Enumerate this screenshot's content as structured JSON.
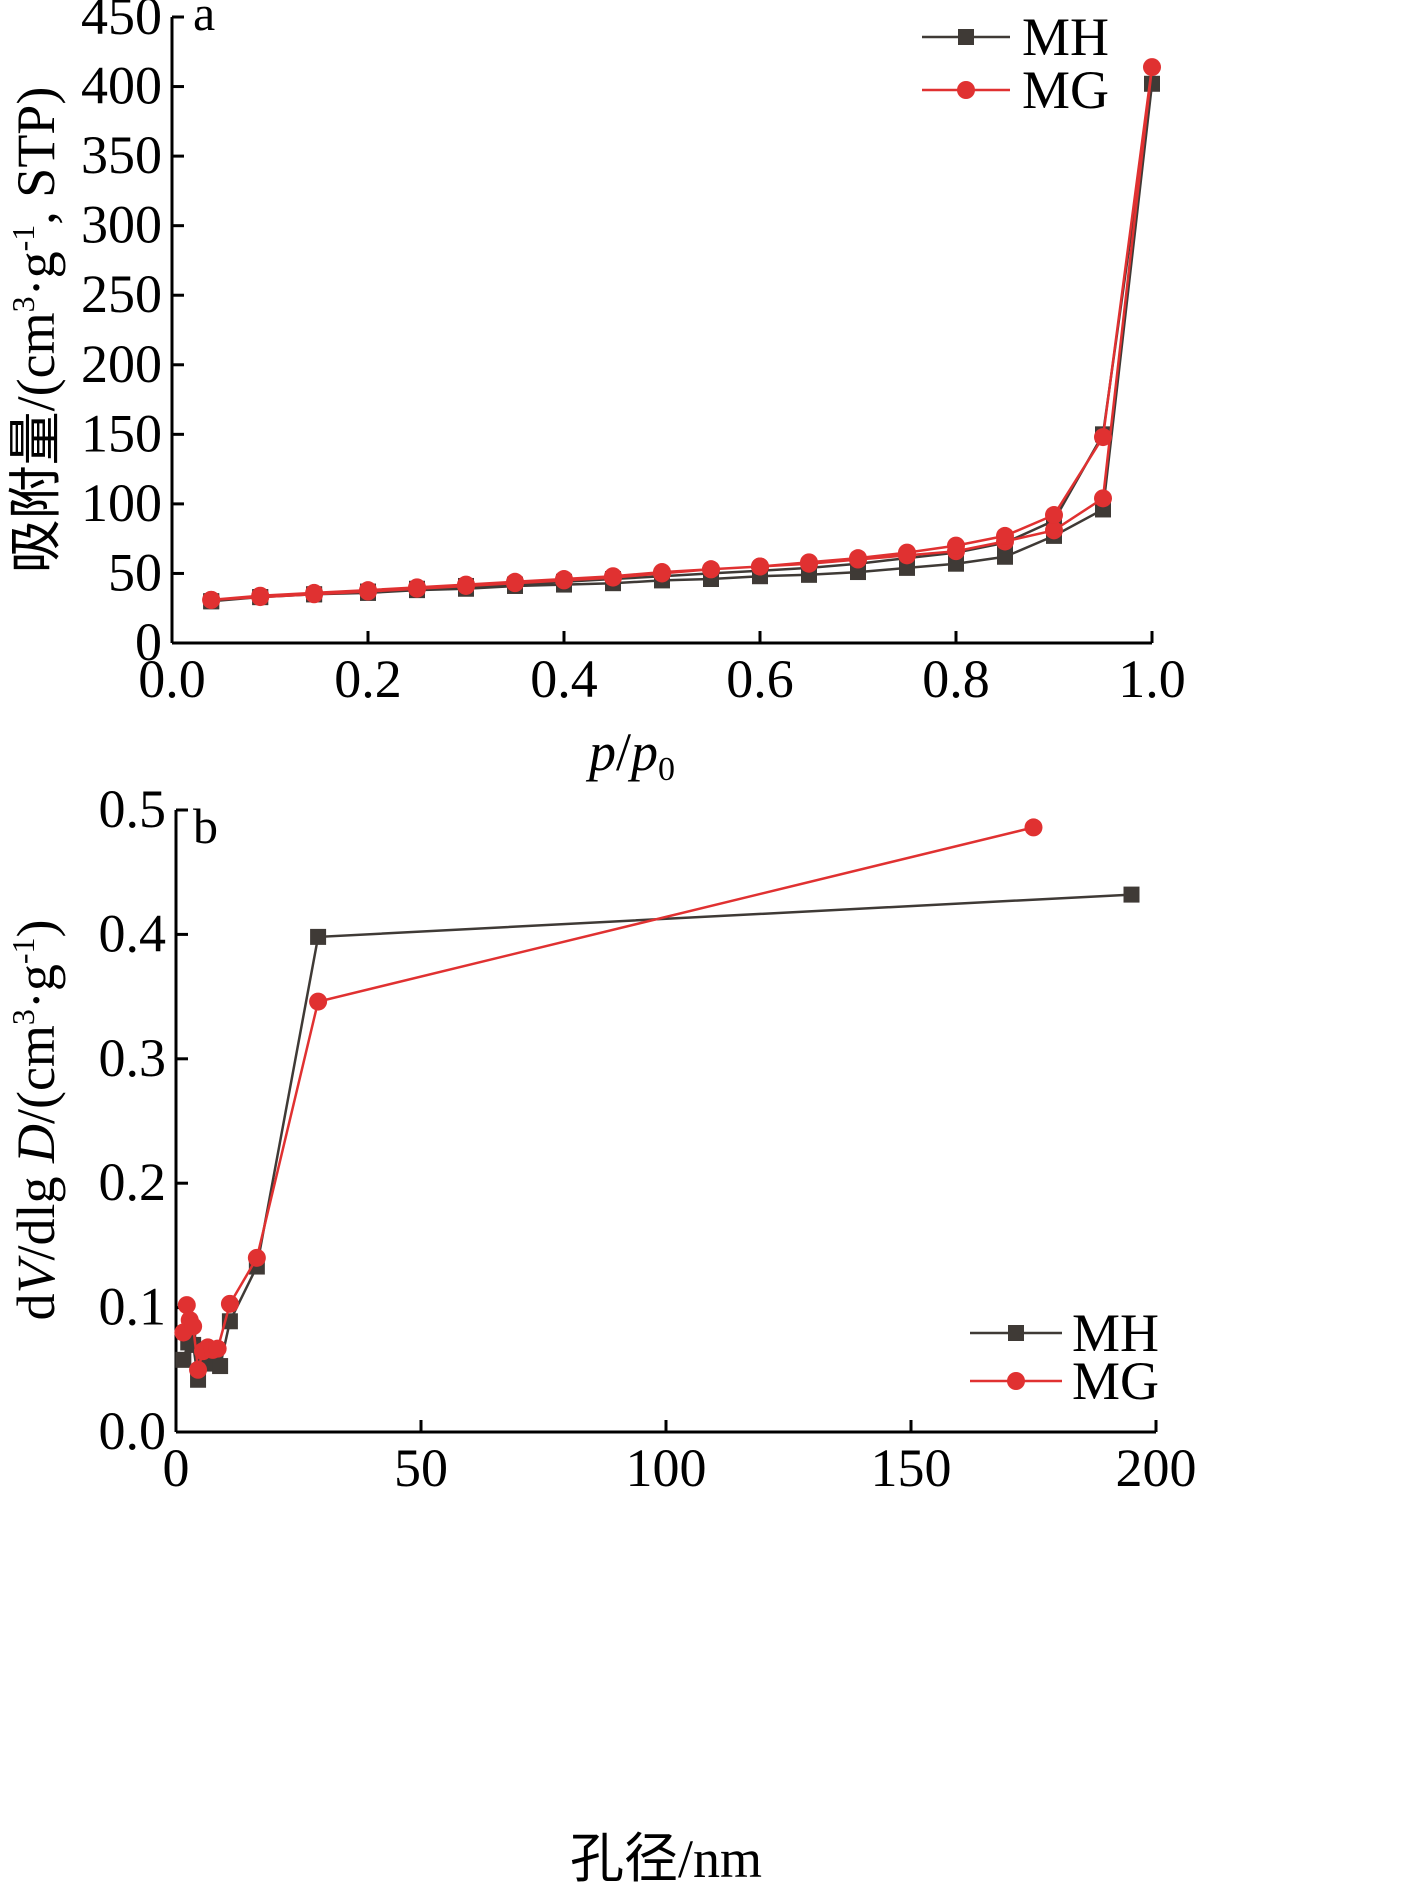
{
  "chart_data": [
    {
      "type": "line",
      "panel_label": "a",
      "xlabel": "p/p0",
      "xlabel_parts": [
        "p",
        "/",
        "p",
        "0"
      ],
      "ylabel": "吸附量/(cm³·g⁻¹, STP)",
      "ylabel_parts": [
        "吸附量/(cm",
        "3",
        "·g",
        "-1",
        ", STP)"
      ],
      "xlim": [
        0,
        1.0
      ],
      "ylim": [
        0,
        450
      ],
      "xticks": [
        "0.0",
        "0.2",
        "0.4",
        "0.6",
        "0.8",
        "1.0"
      ],
      "yticks": [
        "0",
        "50",
        "100",
        "150",
        "200",
        "250",
        "300",
        "350",
        "400",
        "450"
      ],
      "legend_position": "top-right",
      "series": [
        {
          "name": "MH",
          "color": "#3f3a36",
          "marker": "square",
          "x": [
            0.04,
            0.09,
            0.145,
            0.2,
            0.25,
            0.3,
            0.35,
            0.4,
            0.45,
            0.5,
            0.55,
            0.6,
            0.65,
            0.7,
            0.75,
            0.8,
            0.85,
            0.9,
            0.95,
            1.0,
            0.95,
            0.9,
            0.85,
            0.8,
            0.75,
            0.7,
            0.65,
            0.6,
            0.55,
            0.5,
            0.45,
            0.4,
            0.35,
            0.3,
            0.25,
            0.2,
            0.145,
            0.09,
            0.04
          ],
          "y": [
            30,
            33,
            35,
            36,
            38,
            39,
            41,
            42,
            43,
            45,
            46,
            48,
            49,
            51,
            54,
            57,
            62,
            77,
            96,
            402,
            150,
            88,
            72,
            65,
            61,
            57,
            54,
            52,
            50,
            48,
            46,
            44,
            42,
            41,
            39,
            37,
            35,
            33,
            30
          ]
        },
        {
          "name": "MG",
          "color": "#e03131",
          "marker": "circle",
          "x": [
            0.04,
            0.09,
            0.145,
            0.2,
            0.25,
            0.3,
            0.35,
            0.4,
            0.45,
            0.5,
            0.55,
            0.6,
            0.65,
            0.7,
            0.75,
            0.8,
            0.85,
            0.9,
            0.95,
            1.0,
            0.95,
            0.9,
            0.85,
            0.8,
            0.75,
            0.7,
            0.65,
            0.6,
            0.55,
            0.5,
            0.45,
            0.4,
            0.35,
            0.3,
            0.25,
            0.2,
            0.145,
            0.09,
            0.04
          ],
          "y": [
            31,
            34,
            36,
            38,
            40,
            42,
            44,
            46,
            48,
            51,
            53,
            55,
            57,
            60,
            63,
            66,
            73,
            81,
            104,
            414,
            148,
            92,
            77,
            70,
            65,
            61,
            58,
            55,
            53,
            50,
            47,
            45,
            43,
            41,
            39,
            37,
            35,
            33,
            31
          ]
        }
      ]
    },
    {
      "type": "line",
      "panel_label": "b",
      "xlabel": "孔径/nm",
      "ylabel": "dV/dlg D/(cm³·g⁻¹)",
      "ylabel_parts": [
        "d",
        "V",
        "/dlg ",
        "D",
        "/(cm",
        "3",
        "·g",
        "-1",
        ")"
      ],
      "xlim": [
        0,
        200
      ],
      "ylim": [
        0,
        0.5
      ],
      "xticks": [
        "0",
        "50",
        "100",
        "150",
        "200"
      ],
      "yticks": [
        "0.0",
        "0.1",
        "0.2",
        "0.3",
        "0.4",
        "0.5"
      ],
      "legend_position": "bottom-right",
      "series": [
        {
          "name": "MH",
          "color": "#3f3a36",
          "marker": "square",
          "x": [
            1.5,
            2.5,
            3.5,
            4.5,
            6,
            8,
            9,
            11,
            16.5,
            29,
            195
          ],
          "y": [
            0.058,
            0.072,
            0.07,
            0.042,
            0.055,
            0.058,
            0.053,
            0.089,
            0.133,
            0.398,
            0.432
          ]
        },
        {
          "name": "MG",
          "color": "#e03131",
          "marker": "circle",
          "x": [
            1.5,
            2.2,
            2.8,
            3.5,
            4.5,
            5.5,
            6.5,
            7.5,
            8.5,
            11,
            16.5,
            29,
            175
          ],
          "y": [
            0.08,
            0.102,
            0.09,
            0.085,
            0.05,
            0.065,
            0.068,
            0.066,
            0.067,
            0.103,
            0.14,
            0.346,
            0.486
          ]
        }
      ]
    }
  ]
}
